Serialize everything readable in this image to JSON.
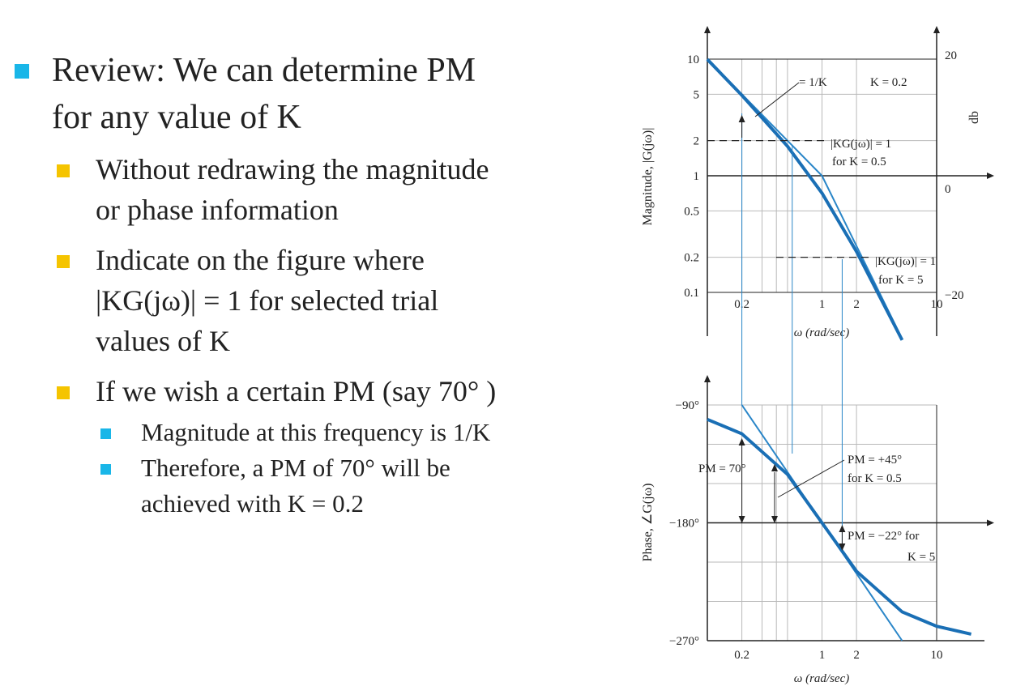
{
  "slide": {
    "bullets": [
      {
        "level": 1,
        "lines": [
          "Review:  We can determine PM",
          "for any value of K"
        ]
      },
      {
        "level": 2,
        "lines": [
          "Without redrawing the magnitude",
          "or phase information"
        ]
      },
      {
        "level": 2,
        "lines": [
          "Indicate on the figure where",
          "|KG(jω)| = 1 for selected trial",
          "values of K"
        ]
      },
      {
        "level": 2,
        "lines": [
          "If we wish a certain PM (say 70°  )"
        ]
      },
      {
        "level": 3,
        "lines": [
          "Magnitude at this frequency is 1/K"
        ]
      },
      {
        "level": 3,
        "lines": [
          "Therefore, a PM of 70°   will be",
          "achieved with K = 0.2"
        ]
      }
    ]
  },
  "colors": {
    "curve": "#1a6fb5",
    "asymptote": "#2a86c8",
    "grid": "#b9b9b9",
    "axis": "#222222",
    "bullet_l1": "#19b6e8",
    "bullet_l2": "#f5c400",
    "bullet_l3": "#19b6e8"
  },
  "chart_data": [
    {
      "type": "line",
      "chart": "magnitude",
      "xscale": "log",
      "yscale": "log",
      "xlim": [
        0.1,
        30
      ],
      "ylim": [
        0.1,
        10
      ],
      "xlabel": "ω (rad/sec)",
      "ylabel": "Magnitude, |G(jω)|",
      "right_axis_label": "db",
      "x_ticks": [
        "0.2",
        "1",
        "2",
        "10"
      ],
      "y_ticks": [
        "10",
        "5",
        "2",
        "1",
        "0.5",
        "0.2",
        "0.1"
      ],
      "right_ticks": [
        "20",
        "0",
        "−20"
      ],
      "series": [
        {
          "style": "exact",
          "x": [
            0.1,
            0.2,
            0.5,
            1,
            2,
            5
          ],
          "y": [
            9.95,
            4.9,
            1.79,
            0.71,
            0.224,
            0.039
          ]
        },
        {
          "style": "asymptote",
          "x": [
            0.1,
            1,
            5
          ],
          "y": [
            10,
            1,
            0.04
          ]
        }
      ],
      "annotations": {
        "one_over_k": "= 1/K",
        "k_value": "K = 0.2",
        "kg1_a": "|KG(jω)| = 1",
        "kg1_a2": "for K = 0.5",
        "kg1_b": "|KG(jω)| = 1",
        "kg1_b2": "for K = 5"
      }
    },
    {
      "type": "line",
      "chart": "phase",
      "xscale": "log",
      "xlim": [
        0.1,
        30
      ],
      "ylim": [
        -270,
        -90
      ],
      "xlabel": "ω (rad/sec)",
      "ylabel": "Phase, ∠G(jω)",
      "x_ticks": [
        "0.2",
        "1",
        "2",
        "10"
      ],
      "y_ticks": [
        "−90°",
        "−180°",
        "−270°"
      ],
      "series": [
        {
          "style": "exact",
          "x": [
            0.1,
            0.2,
            0.5,
            1,
            2,
            5,
            10,
            20
          ],
          "y": [
            -101,
            -112,
            -143,
            -180,
            -217,
            -248,
            -259,
            -265
          ]
        },
        {
          "style": "asymptote",
          "x": [
            0.2,
            5
          ],
          "y": [
            -90,
            -270
          ]
        }
      ],
      "annotations": {
        "pm70": "PM = 70°",
        "pm45": "PM = +45°",
        "pm45b": "for K = 0.5",
        "pm22": "PM = −22° for",
        "pm22b": "K = 5"
      }
    }
  ]
}
